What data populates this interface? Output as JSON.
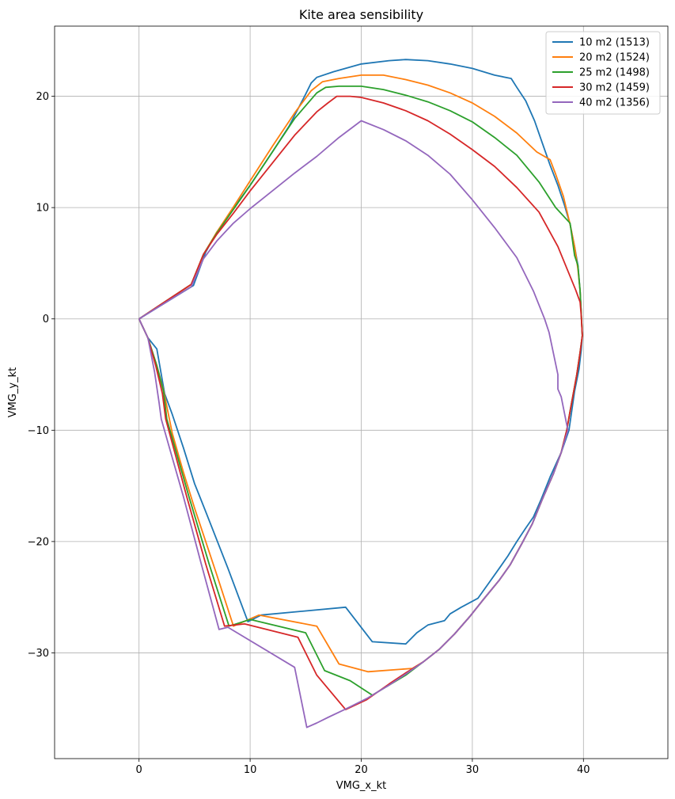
{
  "chart_data": {
    "type": "line",
    "title": "Kite area sensibility",
    "xlabel": "VMG_x_kt",
    "ylabel": "VMG_y_kt",
    "xlim": [
      -7.6,
      47.6
    ],
    "ylim": [
      -39.5,
      26.3
    ],
    "xticks": [
      0,
      10,
      20,
      30,
      40
    ],
    "yticks": [
      -30,
      -20,
      -10,
      0,
      10,
      20
    ],
    "grid": true,
    "legend_position": "top-right",
    "series": [
      {
        "name": "10 m2 (1513)",
        "color": "#1f77b4",
        "points": [
          [
            0,
            0
          ],
          [
            4.9,
            3.0
          ],
          [
            6,
            6
          ],
          [
            7,
            7.8
          ],
          [
            8.4,
            9.8
          ],
          [
            10,
            12
          ],
          [
            12,
            15
          ],
          [
            13.5,
            17.3
          ],
          [
            15,
            20.2
          ],
          [
            15.5,
            21.2
          ],
          [
            16,
            21.7
          ],
          [
            17.5,
            22.2
          ],
          [
            20,
            22.9
          ],
          [
            22.5,
            23.2
          ],
          [
            24,
            23.3
          ],
          [
            26,
            23.2
          ],
          [
            28,
            22.9
          ],
          [
            30,
            22.5
          ],
          [
            32,
            21.9
          ],
          [
            33.5,
            21.6
          ],
          [
            34,
            20.8
          ],
          [
            34.8,
            19.6
          ],
          [
            35.6,
            17.8
          ],
          [
            36.3,
            15.8
          ],
          [
            37,
            13.8
          ],
          [
            37.7,
            12
          ],
          [
            38.3,
            10.2
          ],
          [
            38.8,
            8.5
          ],
          [
            39.2,
            6.5
          ],
          [
            39.5,
            4.8
          ],
          [
            39.7,
            2.5
          ],
          [
            39.8,
            0.5
          ],
          [
            39.9,
            -1.5
          ],
          [
            39.8,
            -2.8
          ],
          [
            39.6,
            -4.5
          ],
          [
            39.2,
            -6.5
          ],
          [
            38.7,
            -10
          ],
          [
            38,
            -12
          ],
          [
            37,
            -14.2
          ],
          [
            36.2,
            -16.2
          ],
          [
            35.5,
            -17.8
          ],
          [
            34.8,
            -18.8
          ],
          [
            34,
            -20
          ],
          [
            33.2,
            -21.3
          ],
          [
            32.5,
            -22.3
          ],
          [
            31.5,
            -23.7
          ],
          [
            30.5,
            -25.1
          ],
          [
            29,
            -25.9
          ],
          [
            28,
            -26.5
          ],
          [
            27.5,
            -27.1
          ],
          [
            26,
            -27.5
          ],
          [
            25,
            -28.2
          ],
          [
            24,
            -29.2
          ],
          [
            21,
            -29
          ],
          [
            18.6,
            -25.9
          ],
          [
            11,
            -26.6
          ],
          [
            9.8,
            -27.2
          ],
          [
            8,
            -22.4
          ],
          [
            6,
            -17.3
          ],
          [
            5,
            -14.8
          ],
          [
            4,
            -11.6
          ],
          [
            3,
            -8.6
          ],
          [
            2.3,
            -6.7
          ],
          [
            1.6,
            -2.7
          ],
          [
            0.8,
            -1.7
          ],
          [
            0,
            0
          ]
        ]
      },
      {
        "name": "20 m2 (1524)",
        "color": "#ff7f0e",
        "points": [
          [
            0,
            0
          ],
          [
            4.7,
            3.1
          ],
          [
            5.8,
            5.8
          ],
          [
            7,
            7.8
          ],
          [
            8.4,
            9.9
          ],
          [
            10,
            12.4
          ],
          [
            12,
            15.5
          ],
          [
            14,
            18.5
          ],
          [
            15.5,
            20.5
          ],
          [
            16.5,
            21.3
          ],
          [
            18,
            21.6
          ],
          [
            20,
            21.9
          ],
          [
            22,
            21.9
          ],
          [
            24,
            21.5
          ],
          [
            26,
            21
          ],
          [
            28,
            20.3
          ],
          [
            30,
            19.4
          ],
          [
            32,
            18.2
          ],
          [
            34,
            16.7
          ],
          [
            35.8,
            15
          ],
          [
            37,
            14.3
          ],
          [
            37.5,
            13
          ],
          [
            38.2,
            11
          ],
          [
            38.8,
            8.5
          ],
          [
            39.2,
            6.5
          ],
          [
            39.5,
            4.5
          ],
          [
            39.7,
            2.5
          ],
          [
            39.8,
            0.5
          ],
          [
            39.9,
            -1.5
          ],
          [
            39.7,
            -3
          ],
          [
            39.4,
            -5
          ],
          [
            38.8,
            -8.3
          ],
          [
            38.5,
            -10
          ],
          [
            38,
            -12
          ],
          [
            37.3,
            -13.9
          ],
          [
            36.3,
            -16.2
          ],
          [
            35.4,
            -18.4
          ],
          [
            34.5,
            -20.1
          ],
          [
            33.4,
            -22.1
          ],
          [
            32.4,
            -23.5
          ],
          [
            31,
            -25.2
          ],
          [
            29.8,
            -26.7
          ],
          [
            28.4,
            -28.3
          ],
          [
            27,
            -29.7
          ],
          [
            25.6,
            -30.8
          ],
          [
            24.6,
            -31.4
          ],
          [
            20.6,
            -31.7
          ],
          [
            18,
            -31
          ],
          [
            16,
            -27.6
          ],
          [
            10.8,
            -26.6
          ],
          [
            8.5,
            -27.6
          ],
          [
            7,
            -23
          ],
          [
            5,
            -17
          ],
          [
            4,
            -13.8
          ],
          [
            3,
            -10.3
          ],
          [
            2.2,
            -6.4
          ],
          [
            1.6,
            -4.2
          ],
          [
            0.8,
            -1.7
          ],
          [
            0,
            0
          ]
        ]
      },
      {
        "name": "25 m2 (1498)",
        "color": "#2ca02c",
        "points": [
          [
            0,
            0
          ],
          [
            4.7,
            3.1
          ],
          [
            5.8,
            5.8
          ],
          [
            7,
            7.7
          ],
          [
            8.4,
            9.7
          ],
          [
            10,
            12
          ],
          [
            12,
            15
          ],
          [
            14,
            18
          ],
          [
            16,
            20.3
          ],
          [
            16.8,
            20.8
          ],
          [
            18,
            20.9
          ],
          [
            20,
            20.9
          ],
          [
            22,
            20.6
          ],
          [
            24,
            20.1
          ],
          [
            26,
            19.5
          ],
          [
            28,
            18.7
          ],
          [
            30,
            17.7
          ],
          [
            32,
            16.3
          ],
          [
            34,
            14.7
          ],
          [
            36,
            12.3
          ],
          [
            37.5,
            10
          ],
          [
            38.8,
            8.6
          ],
          [
            39.2,
            5.7
          ],
          [
            39.5,
            4.8
          ],
          [
            39.7,
            2.5
          ],
          [
            39.8,
            0.5
          ],
          [
            39.9,
            -1.5
          ],
          [
            39.7,
            -3
          ],
          [
            39.4,
            -5
          ],
          [
            38.8,
            -8.3
          ],
          [
            38.5,
            -10
          ],
          [
            38,
            -12
          ],
          [
            37.3,
            -13.9
          ],
          [
            36.3,
            -16.2
          ],
          [
            35.4,
            -18.4
          ],
          [
            34.5,
            -20.1
          ],
          [
            33.4,
            -22.1
          ],
          [
            32.4,
            -23.5
          ],
          [
            31,
            -25.2
          ],
          [
            29.8,
            -26.7
          ],
          [
            28.4,
            -28.3
          ],
          [
            27,
            -29.7
          ],
          [
            25.6,
            -30.8
          ],
          [
            24,
            -32
          ],
          [
            22.5,
            -32.9
          ],
          [
            21,
            -33.8
          ],
          [
            19,
            -32.5
          ],
          [
            16.7,
            -31.6
          ],
          [
            15,
            -28.2
          ],
          [
            10,
            -27
          ],
          [
            8.1,
            -27.6
          ],
          [
            6.3,
            -22
          ],
          [
            4.5,
            -16
          ],
          [
            3.5,
            -12.5
          ],
          [
            2.5,
            -9
          ],
          [
            2.2,
            -6.5
          ],
          [
            1.6,
            -4.2
          ],
          [
            0.8,
            -1.7
          ],
          [
            0,
            0
          ]
        ]
      },
      {
        "name": "30 m2 (1459)",
        "color": "#d62728",
        "points": [
          [
            0,
            0
          ],
          [
            4.7,
            3.1
          ],
          [
            5.8,
            5.8
          ],
          [
            7,
            7.6
          ],
          [
            8.5,
            9.5
          ],
          [
            10,
            11.5
          ],
          [
            12,
            14
          ],
          [
            14,
            16.5
          ],
          [
            16,
            18.6
          ],
          [
            17,
            19.4
          ],
          [
            17.8,
            20
          ],
          [
            19,
            20
          ],
          [
            20,
            19.9
          ],
          [
            22,
            19.4
          ],
          [
            24,
            18.7
          ],
          [
            26,
            17.8
          ],
          [
            28,
            16.6
          ],
          [
            30,
            15.2
          ],
          [
            32,
            13.7
          ],
          [
            34,
            11.8
          ],
          [
            36,
            9.6
          ],
          [
            37.7,
            6.5
          ],
          [
            39.3,
            2.6
          ],
          [
            39.7,
            1.5
          ],
          [
            39.8,
            0.3
          ],
          [
            39.9,
            -1.5
          ],
          [
            39.7,
            -3
          ],
          [
            39.4,
            -5
          ],
          [
            38.8,
            -8.3
          ],
          [
            38.5,
            -10
          ],
          [
            38,
            -12
          ],
          [
            37.3,
            -13.9
          ],
          [
            36.3,
            -16.2
          ],
          [
            35.4,
            -18.4
          ],
          [
            34.5,
            -20.1
          ],
          [
            33.4,
            -22.1
          ],
          [
            32.4,
            -23.5
          ],
          [
            31,
            -25.2
          ],
          [
            29.8,
            -26.7
          ],
          [
            28.4,
            -28.3
          ],
          [
            27,
            -29.7
          ],
          [
            25.6,
            -30.8
          ],
          [
            24,
            -31.8
          ],
          [
            22.5,
            -32.8
          ],
          [
            20.5,
            -34.2
          ],
          [
            18.6,
            -35.1
          ],
          [
            16,
            -32
          ],
          [
            14.3,
            -28.6
          ],
          [
            9.5,
            -27.4
          ],
          [
            7.7,
            -27.6
          ],
          [
            6,
            -22
          ],
          [
            4.3,
            -16
          ],
          [
            3.3,
            -12.3
          ],
          [
            2.4,
            -9
          ],
          [
            2.1,
            -6.7
          ],
          [
            1.5,
            -4.2
          ],
          [
            0.8,
            -1.7
          ],
          [
            0,
            0
          ]
        ]
      },
      {
        "name": "40 m2 (1356)",
        "color": "#9467bd",
        "points": [
          [
            0,
            0
          ],
          [
            4.7,
            2.9
          ],
          [
            5.8,
            5.4
          ],
          [
            7,
            7
          ],
          [
            8.5,
            8.6
          ],
          [
            10,
            9.9
          ],
          [
            12,
            11.5
          ],
          [
            14,
            13.1
          ],
          [
            16,
            14.6
          ],
          [
            18,
            16.3
          ],
          [
            20,
            17.8
          ],
          [
            22,
            17
          ],
          [
            24,
            16
          ],
          [
            26,
            14.7
          ],
          [
            28,
            13
          ],
          [
            30,
            10.7
          ],
          [
            32,
            8.2
          ],
          [
            34,
            5.5
          ],
          [
            35.5,
            2.5
          ],
          [
            36.5,
            0
          ],
          [
            36.9,
            -1.2
          ],
          [
            37.7,
            -5
          ],
          [
            37.7,
            -6.3
          ],
          [
            38,
            -7
          ],
          [
            38.6,
            -10
          ],
          [
            38,
            -12
          ],
          [
            37.3,
            -13.9
          ],
          [
            36.3,
            -16.2
          ],
          [
            35.4,
            -18.4
          ],
          [
            34.5,
            -20.1
          ],
          [
            33.4,
            -22.1
          ],
          [
            32.4,
            -23.5
          ],
          [
            31,
            -25.2
          ],
          [
            29.8,
            -26.7
          ],
          [
            28.4,
            -28.3
          ],
          [
            27,
            -29.7
          ],
          [
            25.6,
            -30.8
          ],
          [
            24,
            -31.9
          ],
          [
            22.5,
            -32.9
          ],
          [
            20.5,
            -34.1
          ],
          [
            18.5,
            -35.1
          ],
          [
            17,
            -35.8
          ],
          [
            16,
            -36.3
          ],
          [
            15.1,
            -36.7
          ],
          [
            14,
            -31.3
          ],
          [
            8,
            -27.7
          ],
          [
            7.2,
            -27.9
          ],
          [
            5.6,
            -22
          ],
          [
            4,
            -16
          ],
          [
            3,
            -12.5
          ],
          [
            2,
            -9
          ],
          [
            1.8,
            -7.5
          ],
          [
            1.4,
            -4.8
          ],
          [
            0.8,
            -1.7
          ],
          [
            0,
            0
          ]
        ]
      }
    ]
  }
}
